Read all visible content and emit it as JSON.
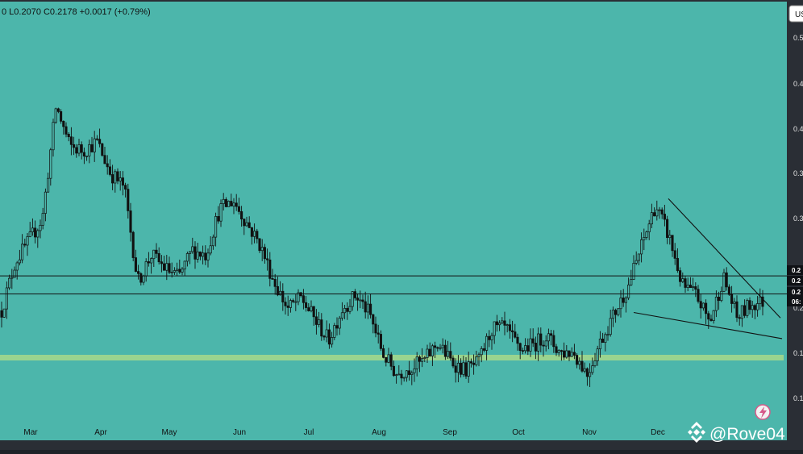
{
  "ohlc_header": {
    "text": "0  L0.2070  C0.2178  +0.0017 (+0.79%)"
  },
  "currency_button": {
    "label": "US"
  },
  "price_axis": {
    "tick_labels": [
      "0.5",
      "0.4",
      "0.4",
      "0.3",
      "0.3",
      "0.2",
      "0.1",
      "0.1"
    ]
  },
  "price_badges": [
    {
      "label": "0.2",
      "style": "dark"
    },
    {
      "label": "0.2",
      "style": "dark"
    },
    {
      "label": "0.2",
      "style": "dark"
    },
    {
      "label": "06:",
      "style": "dark"
    }
  ],
  "watermark": {
    "handle": "@Rove04"
  },
  "colors": {
    "background": "#4cb6ab",
    "candles": "#111111",
    "support_zone": "#a8d98a",
    "axis_bg": "#2a2e35",
    "axis_text": "#e6e6e6",
    "badge_bg": "#0f1115",
    "badge_text": "#ffffff"
  },
  "icons": {
    "logo": "binance-logo-icon",
    "lightning": "lightning-icon"
  },
  "chart_data": {
    "type": "candlestick",
    "x_tick_labels": [
      "Mar",
      "Apr",
      "May",
      "Jun",
      "Jul",
      "Aug",
      "Sep",
      "Oct",
      "Nov",
      "Dec"
    ],
    "ylim": [
      0.1,
      0.52
    ],
    "close_path": [
      {
        "t": "Feb",
        "v": 0.208
      },
      {
        "t": "Feb",
        "v": 0.262
      },
      {
        "t": "Feb",
        "v": 0.285
      },
      {
        "t": "Mar",
        "v": 0.31
      },
      {
        "t": "Mar",
        "v": 0.435
      },
      {
        "t": "Mar",
        "v": 0.39
      },
      {
        "t": "Mar",
        "v": 0.385
      },
      {
        "t": "Apr",
        "v": 0.395
      },
      {
        "t": "Apr",
        "v": 0.36
      },
      {
        "t": "Apr",
        "v": 0.345
      },
      {
        "t": "Apr",
        "v": 0.24
      },
      {
        "t": "Apr",
        "v": 0.27
      },
      {
        "t": "Apr",
        "v": 0.255
      },
      {
        "t": "May",
        "v": 0.245
      },
      {
        "t": "May",
        "v": 0.275
      },
      {
        "t": "May",
        "v": 0.27
      },
      {
        "t": "May",
        "v": 0.32
      },
      {
        "t": "Jun",
        "v": 0.33
      },
      {
        "t": "Jun",
        "v": 0.305
      },
      {
        "t": "Jun",
        "v": 0.28
      },
      {
        "t": "Jun",
        "v": 0.24
      },
      {
        "t": "Jul",
        "v": 0.21
      },
      {
        "t": "Jul",
        "v": 0.222
      },
      {
        "t": "Jul",
        "v": 0.198
      },
      {
        "t": "Jul",
        "v": 0.175
      },
      {
        "t": "Jul",
        "v": 0.21
      },
      {
        "t": "Jul",
        "v": 0.225
      },
      {
        "t": "Aug",
        "v": 0.205
      },
      {
        "t": "Aug",
        "v": 0.16
      },
      {
        "t": "Aug",
        "v": 0.138
      },
      {
        "t": "Aug",
        "v": 0.145
      },
      {
        "t": "Aug",
        "v": 0.152
      },
      {
        "t": "Aug",
        "v": 0.172
      },
      {
        "t": "Sep",
        "v": 0.152
      },
      {
        "t": "Sep",
        "v": 0.142
      },
      {
        "t": "Sep",
        "v": 0.15
      },
      {
        "t": "Sep",
        "v": 0.188
      },
      {
        "t": "Sep",
        "v": 0.188
      },
      {
        "t": "Oct",
        "v": 0.165
      },
      {
        "t": "Oct",
        "v": 0.17
      },
      {
        "t": "Oct",
        "v": 0.18
      },
      {
        "t": "Oct",
        "v": 0.162
      },
      {
        "t": "Nov",
        "v": 0.162
      },
      {
        "t": "Nov",
        "v": 0.138
      },
      {
        "t": "Nov",
        "v": 0.175
      },
      {
        "t": "Nov",
        "v": 0.205
      },
      {
        "t": "Nov",
        "v": 0.235
      },
      {
        "t": "Dec",
        "v": 0.28
      },
      {
        "t": "Dec",
        "v": 0.325
      },
      {
        "t": "Dec",
        "v": 0.29
      },
      {
        "t": "Dec",
        "v": 0.235
      },
      {
        "t": "Dec",
        "v": 0.225
      },
      {
        "t": "Dec",
        "v": 0.195
      },
      {
        "t": "Dec",
        "v": 0.245
      },
      {
        "t": "Dec",
        "v": 0.2
      },
      {
        "t": "Dec",
        "v": 0.215
      },
      {
        "t": "Dec",
        "v": 0.218
      }
    ],
    "horizontal_lines": [
      {
        "name": "resistance",
        "price": 0.2465
      },
      {
        "name": "support",
        "price": 0.2265
      }
    ],
    "support_zone": {
      "price": 0.1585
    },
    "trendlines": [
      {
        "name": "falling-resistance",
        "from": {
          "t": "Dec",
          "v": 0.332
        },
        "to": {
          "t": "Dec",
          "v": 0.2
        }
      },
      {
        "name": "falling-support",
        "from": {
          "t": "Nov",
          "v": 0.206
        },
        "to": {
          "t": "Dec",
          "v": 0.177
        }
      }
    ]
  }
}
